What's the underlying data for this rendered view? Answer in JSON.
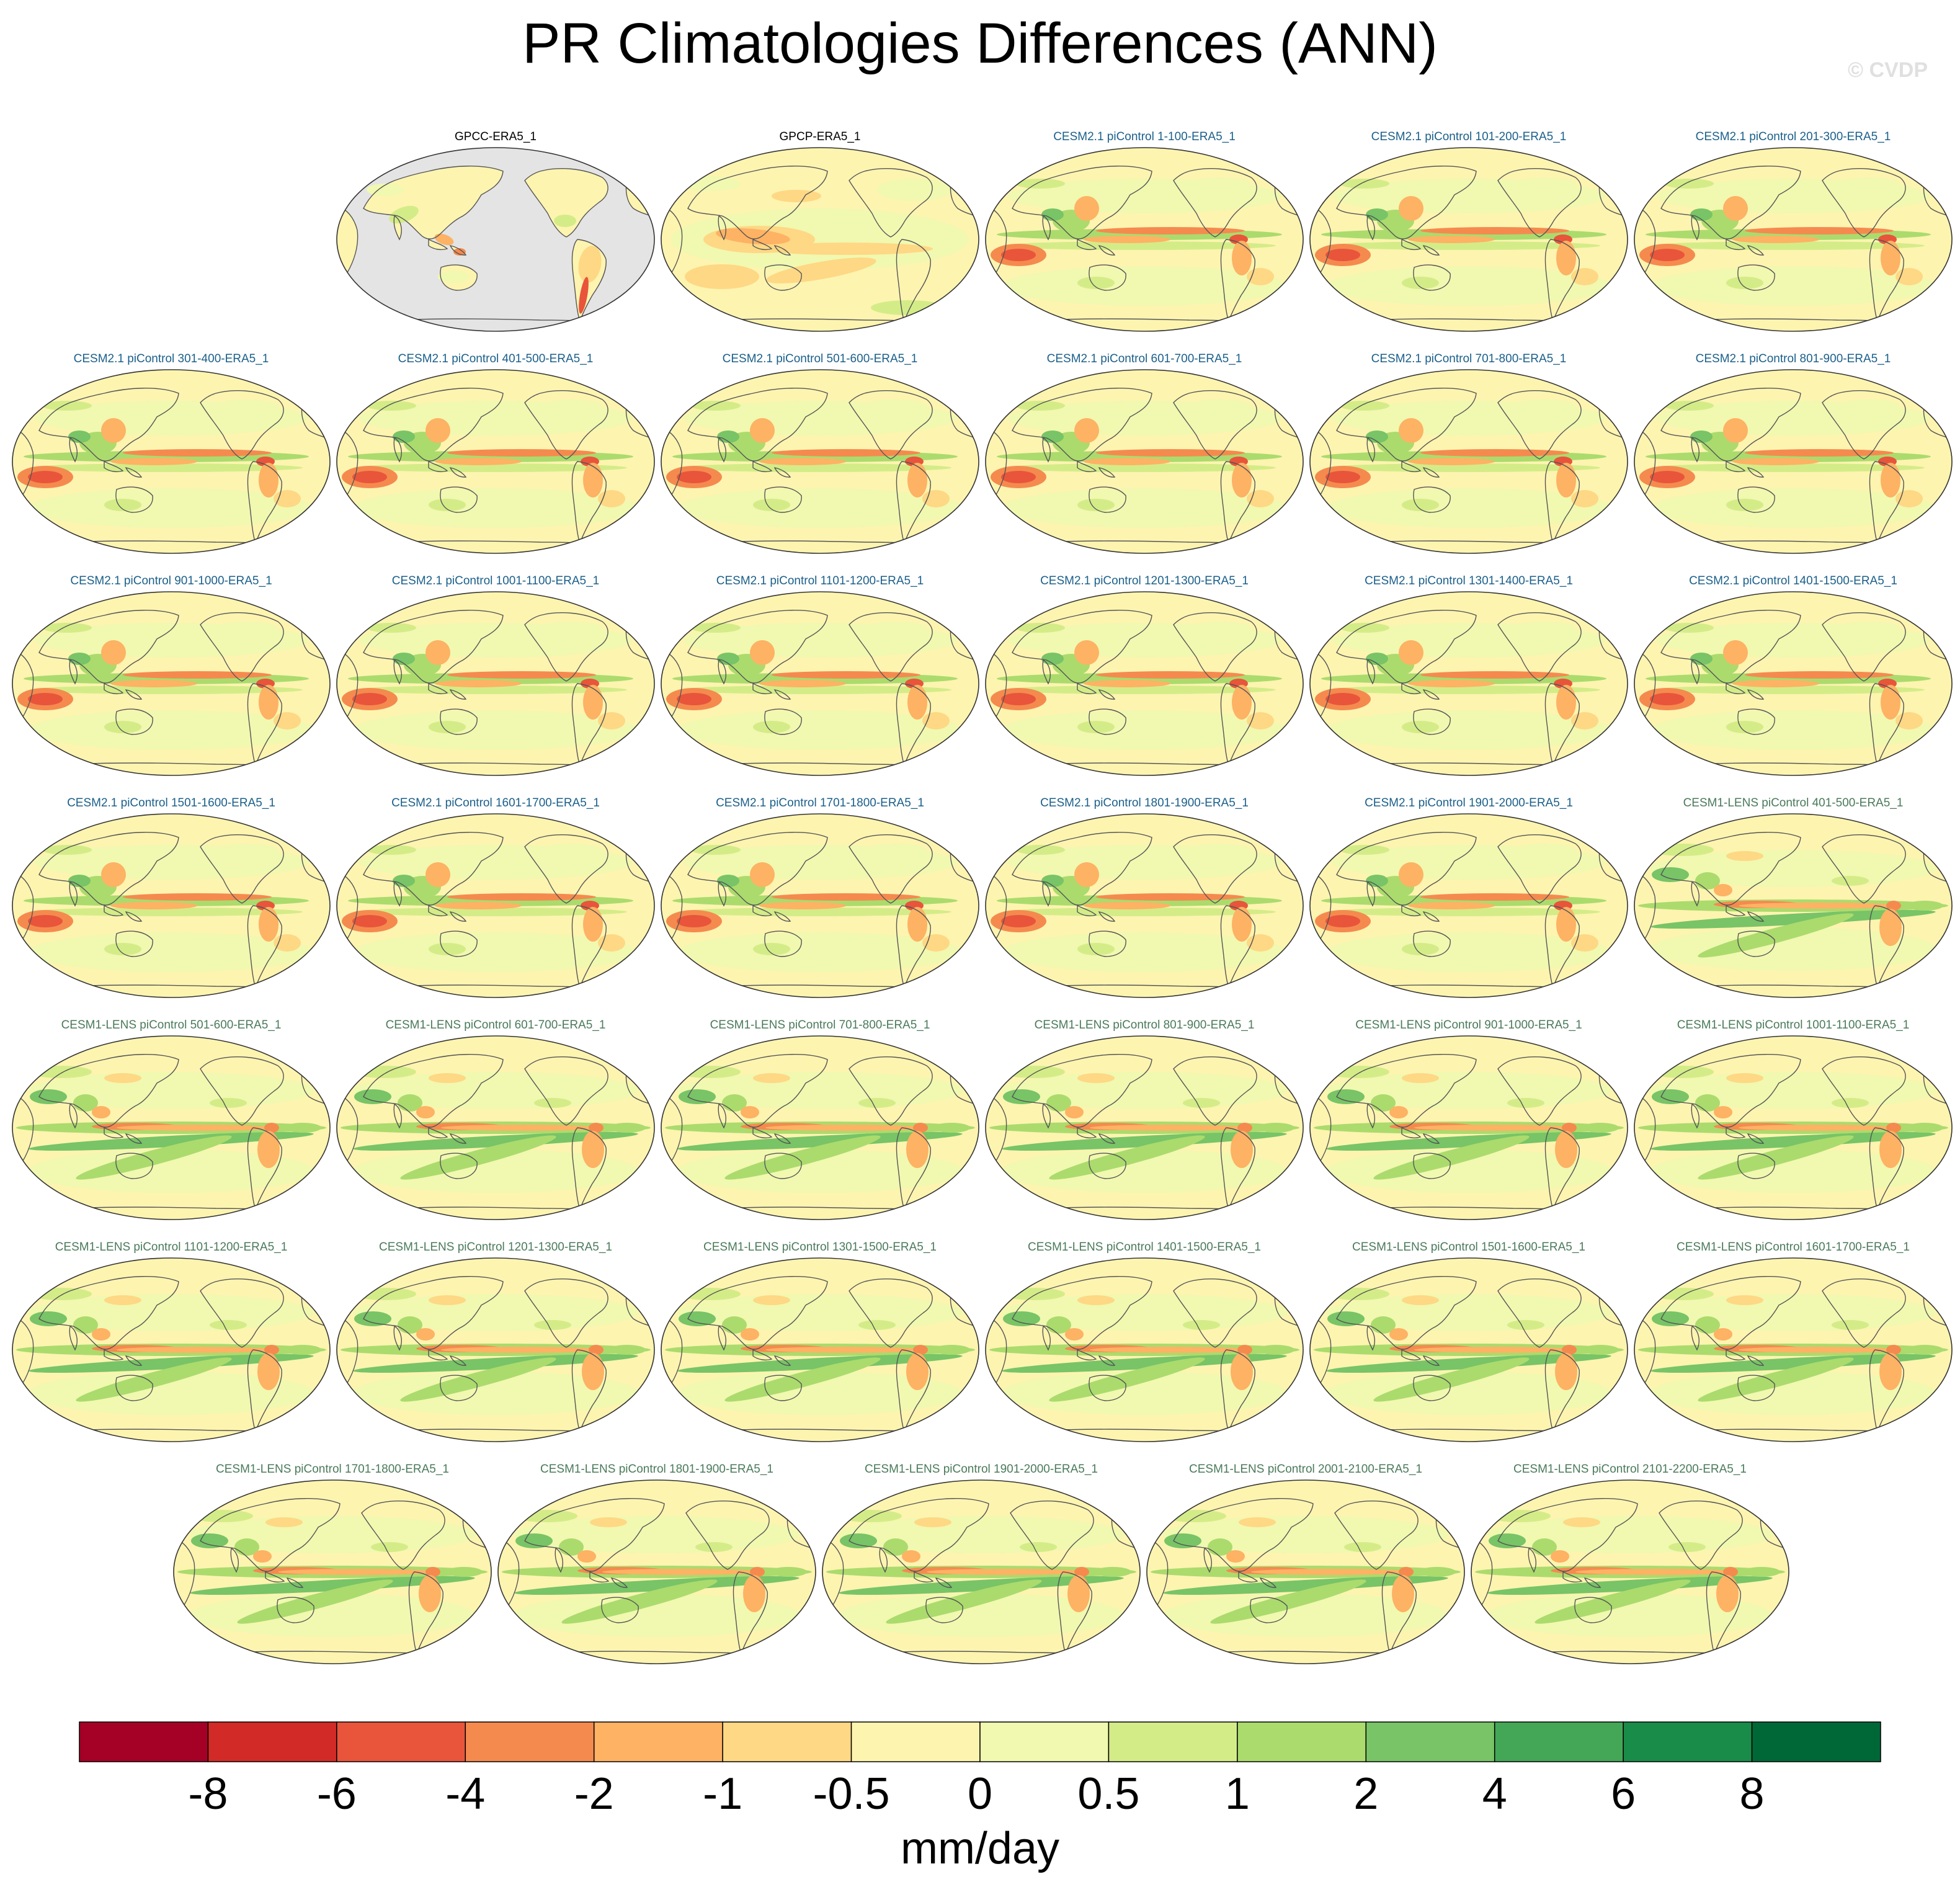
{
  "title": "PR Climatologies Differences (ANN)",
  "watermark": "© CVDP",
  "panels": [
    {
      "label": "GPCC-ERA5_1",
      "color": "#000000",
      "variant": "gpcc"
    },
    {
      "label": "GPCP-ERA5_1",
      "color": "#000000",
      "variant": "gpcp"
    },
    {
      "label": "CESM2.1 piControl 1-100-ERA5_1",
      "color": "#1a5f8a",
      "variant": "cesm2"
    },
    {
      "label": "CESM2.1 piControl 101-200-ERA5_1",
      "color": "#1a5f8a",
      "variant": "cesm2"
    },
    {
      "label": "CESM2.1 piControl 201-300-ERA5_1",
      "color": "#1a5f8a",
      "variant": "cesm2"
    },
    {
      "label": "CESM2.1 piControl 301-400-ERA5_1",
      "color": "#1a5f8a",
      "variant": "cesm2"
    },
    {
      "label": "CESM2.1 piControl 401-500-ERA5_1",
      "color": "#1a5f8a",
      "variant": "cesm2"
    },
    {
      "label": "CESM2.1 piControl 501-600-ERA5_1",
      "color": "#1a5f8a",
      "variant": "cesm2"
    },
    {
      "label": "CESM2.1 piControl 601-700-ERA5_1",
      "color": "#1a5f8a",
      "variant": "cesm2"
    },
    {
      "label": "CESM2.1 piControl 701-800-ERA5_1",
      "color": "#1a5f8a",
      "variant": "cesm2"
    },
    {
      "label": "CESM2.1 piControl 801-900-ERA5_1",
      "color": "#1a5f8a",
      "variant": "cesm2"
    },
    {
      "label": "CESM2.1 piControl 901-1000-ERA5_1",
      "color": "#1a5f8a",
      "variant": "cesm2"
    },
    {
      "label": "CESM2.1 piControl 1001-1100-ERA5_1",
      "color": "#1a5f8a",
      "variant": "cesm2"
    },
    {
      "label": "CESM2.1 piControl 1101-1200-ERA5_1",
      "color": "#1a5f8a",
      "variant": "cesm2"
    },
    {
      "label": "CESM2.1 piControl 1201-1300-ERA5_1",
      "color": "#1a5f8a",
      "variant": "cesm2"
    },
    {
      "label": "CESM2.1 piControl 1301-1400-ERA5_1",
      "color": "#1a5f8a",
      "variant": "cesm2"
    },
    {
      "label": "CESM2.1 piControl 1401-1500-ERA5_1",
      "color": "#1a5f8a",
      "variant": "cesm2"
    },
    {
      "label": "CESM2.1 piControl 1501-1600-ERA5_1",
      "color": "#1a5f8a",
      "variant": "cesm2"
    },
    {
      "label": "CESM2.1 piControl 1601-1700-ERA5_1",
      "color": "#1a5f8a",
      "variant": "cesm2"
    },
    {
      "label": "CESM2.1 piControl 1701-1800-ERA5_1",
      "color": "#1a5f8a",
      "variant": "cesm2"
    },
    {
      "label": "CESM2.1 piControl 1801-1900-ERA5_1",
      "color": "#1a5f8a",
      "variant": "cesm2"
    },
    {
      "label": "CESM2.1 piControl 1901-2000-ERA5_1",
      "color": "#1a5f8a",
      "variant": "cesm2"
    },
    {
      "label": "CESM1-LENS piControl 401-500-ERA5_1",
      "color": "#4a7a5a",
      "variant": "cesm1"
    },
    {
      "label": "CESM1-LENS piControl 501-600-ERA5_1",
      "color": "#4a7a5a",
      "variant": "cesm1"
    },
    {
      "label": "CESM1-LENS piControl 601-700-ERA5_1",
      "color": "#4a7a5a",
      "variant": "cesm1"
    },
    {
      "label": "CESM1-LENS piControl 701-800-ERA5_1",
      "color": "#4a7a5a",
      "variant": "cesm1"
    },
    {
      "label": "CESM1-LENS piControl 801-900-ERA5_1",
      "color": "#4a7a5a",
      "variant": "cesm1"
    },
    {
      "label": "CESM1-LENS piControl 901-1000-ERA5_1",
      "color": "#4a7a5a",
      "variant": "cesm1"
    },
    {
      "label": "CESM1-LENS piControl 1001-1100-ERA5_1",
      "color": "#4a7a5a",
      "variant": "cesm1"
    },
    {
      "label": "CESM1-LENS piControl 1101-1200-ERA5_1",
      "color": "#4a7a5a",
      "variant": "cesm1"
    },
    {
      "label": "CESM1-LENS piControl 1201-1300-ERA5_1",
      "color": "#4a7a5a",
      "variant": "cesm1"
    },
    {
      "label": "CESM1-LENS piControl 1301-1500-ERA5_1",
      "color": "#4a7a5a",
      "variant": "cesm1"
    },
    {
      "label": "CESM1-LENS piControl 1401-1500-ERA5_1",
      "color": "#4a7a5a",
      "variant": "cesm1"
    },
    {
      "label": "CESM1-LENS piControl 1501-1600-ERA5_1",
      "color": "#4a7a5a",
      "variant": "cesm1"
    },
    {
      "label": "CESM1-LENS piControl 1601-1700-ERA5_1",
      "color": "#4a7a5a",
      "variant": "cesm1"
    },
    {
      "label": "CESM1-LENS piControl 1701-1800-ERA5_1",
      "color": "#4a7a5a",
      "variant": "cesm1"
    },
    {
      "label": "CESM1-LENS piControl 1801-1900-ERA5_1",
      "color": "#4a7a5a",
      "variant": "cesm1"
    },
    {
      "label": "CESM1-LENS piControl 1901-2000-ERA5_1",
      "color": "#4a7a5a",
      "variant": "cesm1"
    },
    {
      "label": "CESM1-LENS piControl 2001-2100-ERA5_1",
      "color": "#4a7a5a",
      "variant": "cesm1"
    },
    {
      "label": "CESM1-LENS piControl 2101-2200-ERA5_1",
      "color": "#4a7a5a",
      "variant": "cesm1"
    }
  ],
  "colorbar": {
    "label": "mm/day",
    "colors": [
      "#a50026",
      "#d22b27",
      "#e8553b",
      "#f58a4f",
      "#fdb264",
      "#fed884",
      "#fdf4b0",
      "#f1f8b0",
      "#d4ec88",
      "#abdb6d",
      "#78c466",
      "#44a758",
      "#1a8c49",
      "#006837"
    ],
    "ticks": [
      "-8",
      "-6",
      "-4",
      "-2",
      "-1",
      "-0.5",
      "0",
      "0.5",
      "1",
      "2",
      "4",
      "6",
      "8"
    ]
  },
  "map_colors": {
    "land_gray": "#e4e4e4",
    "coastline": "#555555"
  }
}
